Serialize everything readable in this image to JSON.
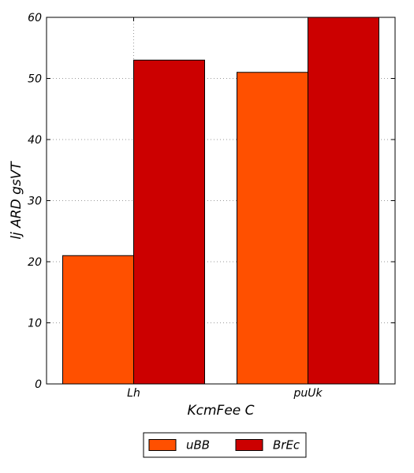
{
  "chart_data": {
    "type": "bar",
    "title": "",
    "xlabel": "KcmFee C",
    "ylabel": "lj ARD  gsVT",
    "categories": [
      "Lh",
      "puUk"
    ],
    "series": [
      {
        "name": "uBB",
        "values": [
          21,
          51
        ],
        "color": "#ff5000"
      },
      {
        "name": "BrEc",
        "values": [
          53,
          60
        ],
        "color": "#cc0000"
      }
    ],
    "ylim": [
      0,
      60
    ],
    "yticks": [
      0,
      10,
      20,
      30,
      40,
      50,
      60
    ],
    "grid": true,
    "legend_position": "bottom-center"
  }
}
